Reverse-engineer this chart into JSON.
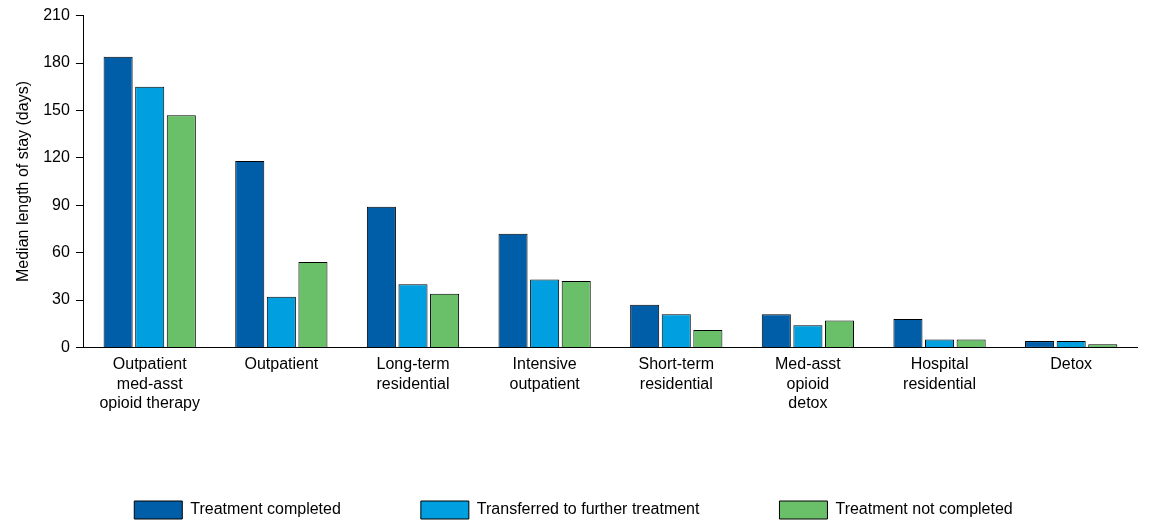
{
  "chart_data": {
    "type": "bar",
    "ylabel": "Median length of stay (days)",
    "categories": [
      "Outpatient\nmed-asst\nopioid therapy",
      "Outpatient",
      "Long-term\nresidential",
      "Intensive\noutpatient",
      "Short-term\nresidential",
      "Med-asst\nopioid\ndetox",
      "Hospital\nresidential",
      "Detox"
    ],
    "series": [
      {
        "name": "Treatment completed",
        "color": "#005ea8",
        "values": [
          184,
          118,
          89,
          72,
          27,
          21,
          18,
          4
        ]
      },
      {
        "name": "Transferred to further treatment",
        "color": "#00a0e0",
        "values": [
          165,
          32,
          40,
          43,
          21,
          14,
          5,
          4
        ]
      },
      {
        "name": "Treatment not completed",
        "color": "#6abf69",
        "values": [
          147,
          54,
          34,
          42,
          11,
          17,
          5,
          2
        ]
      }
    ],
    "ylim": [
      0,
      210
    ],
    "yticks": [
      0,
      30,
      60,
      90,
      120,
      150,
      180,
      210
    ],
    "grid": false,
    "legend": "bottom"
  }
}
